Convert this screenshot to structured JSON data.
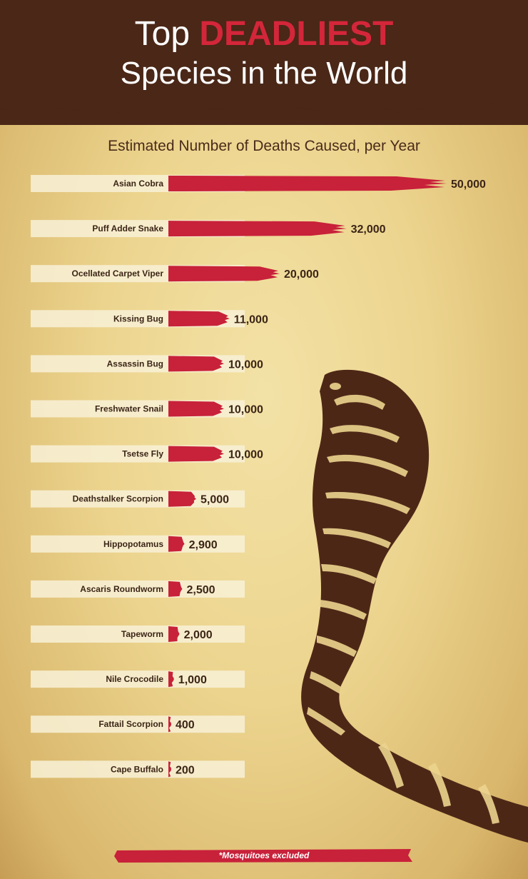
{
  "title": {
    "prefix": "Top",
    "highlight": "DEADLIEST",
    "line2": "Species in the World"
  },
  "subtitle": "Estimated Number of Deaths Caused, per Year",
  "footnote": "*Mosquitoes excluded",
  "colors": {
    "header_bg": "#4a2717",
    "bar": "#c8213a",
    "title_accent": "#d4263a",
    "label_bg": "#f8f1d7",
    "text_dark": "#3b2416",
    "cobra": "#4d2716"
  },
  "chart_data": {
    "type": "bar",
    "orientation": "horizontal",
    "title": "Estimated Number of Deaths Caused, per Year",
    "categories": [
      "Asian Cobra",
      "Puff Adder Snake",
      "Ocellated Carpet Viper",
      "Kissing Bug",
      "Assassin Bug",
      "Freshwater Snail",
      "Tsetse Fly",
      "Deathstalker Scorpion",
      "Hippopotamus",
      "Ascaris Roundworm",
      "Tapeworm",
      "Nile Crocodile",
      "Fattail Scorpion",
      "Cape Buffalo"
    ],
    "values": [
      50000,
      32000,
      20000,
      11000,
      10000,
      10000,
      10000,
      5000,
      2900,
      2500,
      2000,
      1000,
      400,
      200
    ],
    "value_labels": [
      "50,000",
      "32,000",
      "20,000",
      "11,000",
      "10,000",
      "10,000",
      "10,000",
      "5,000",
      "2,900",
      "2,500",
      "2,000",
      "1,000",
      "400",
      "200"
    ],
    "xlim": [
      0,
      50000
    ],
    "grid": false,
    "legend": "none"
  }
}
